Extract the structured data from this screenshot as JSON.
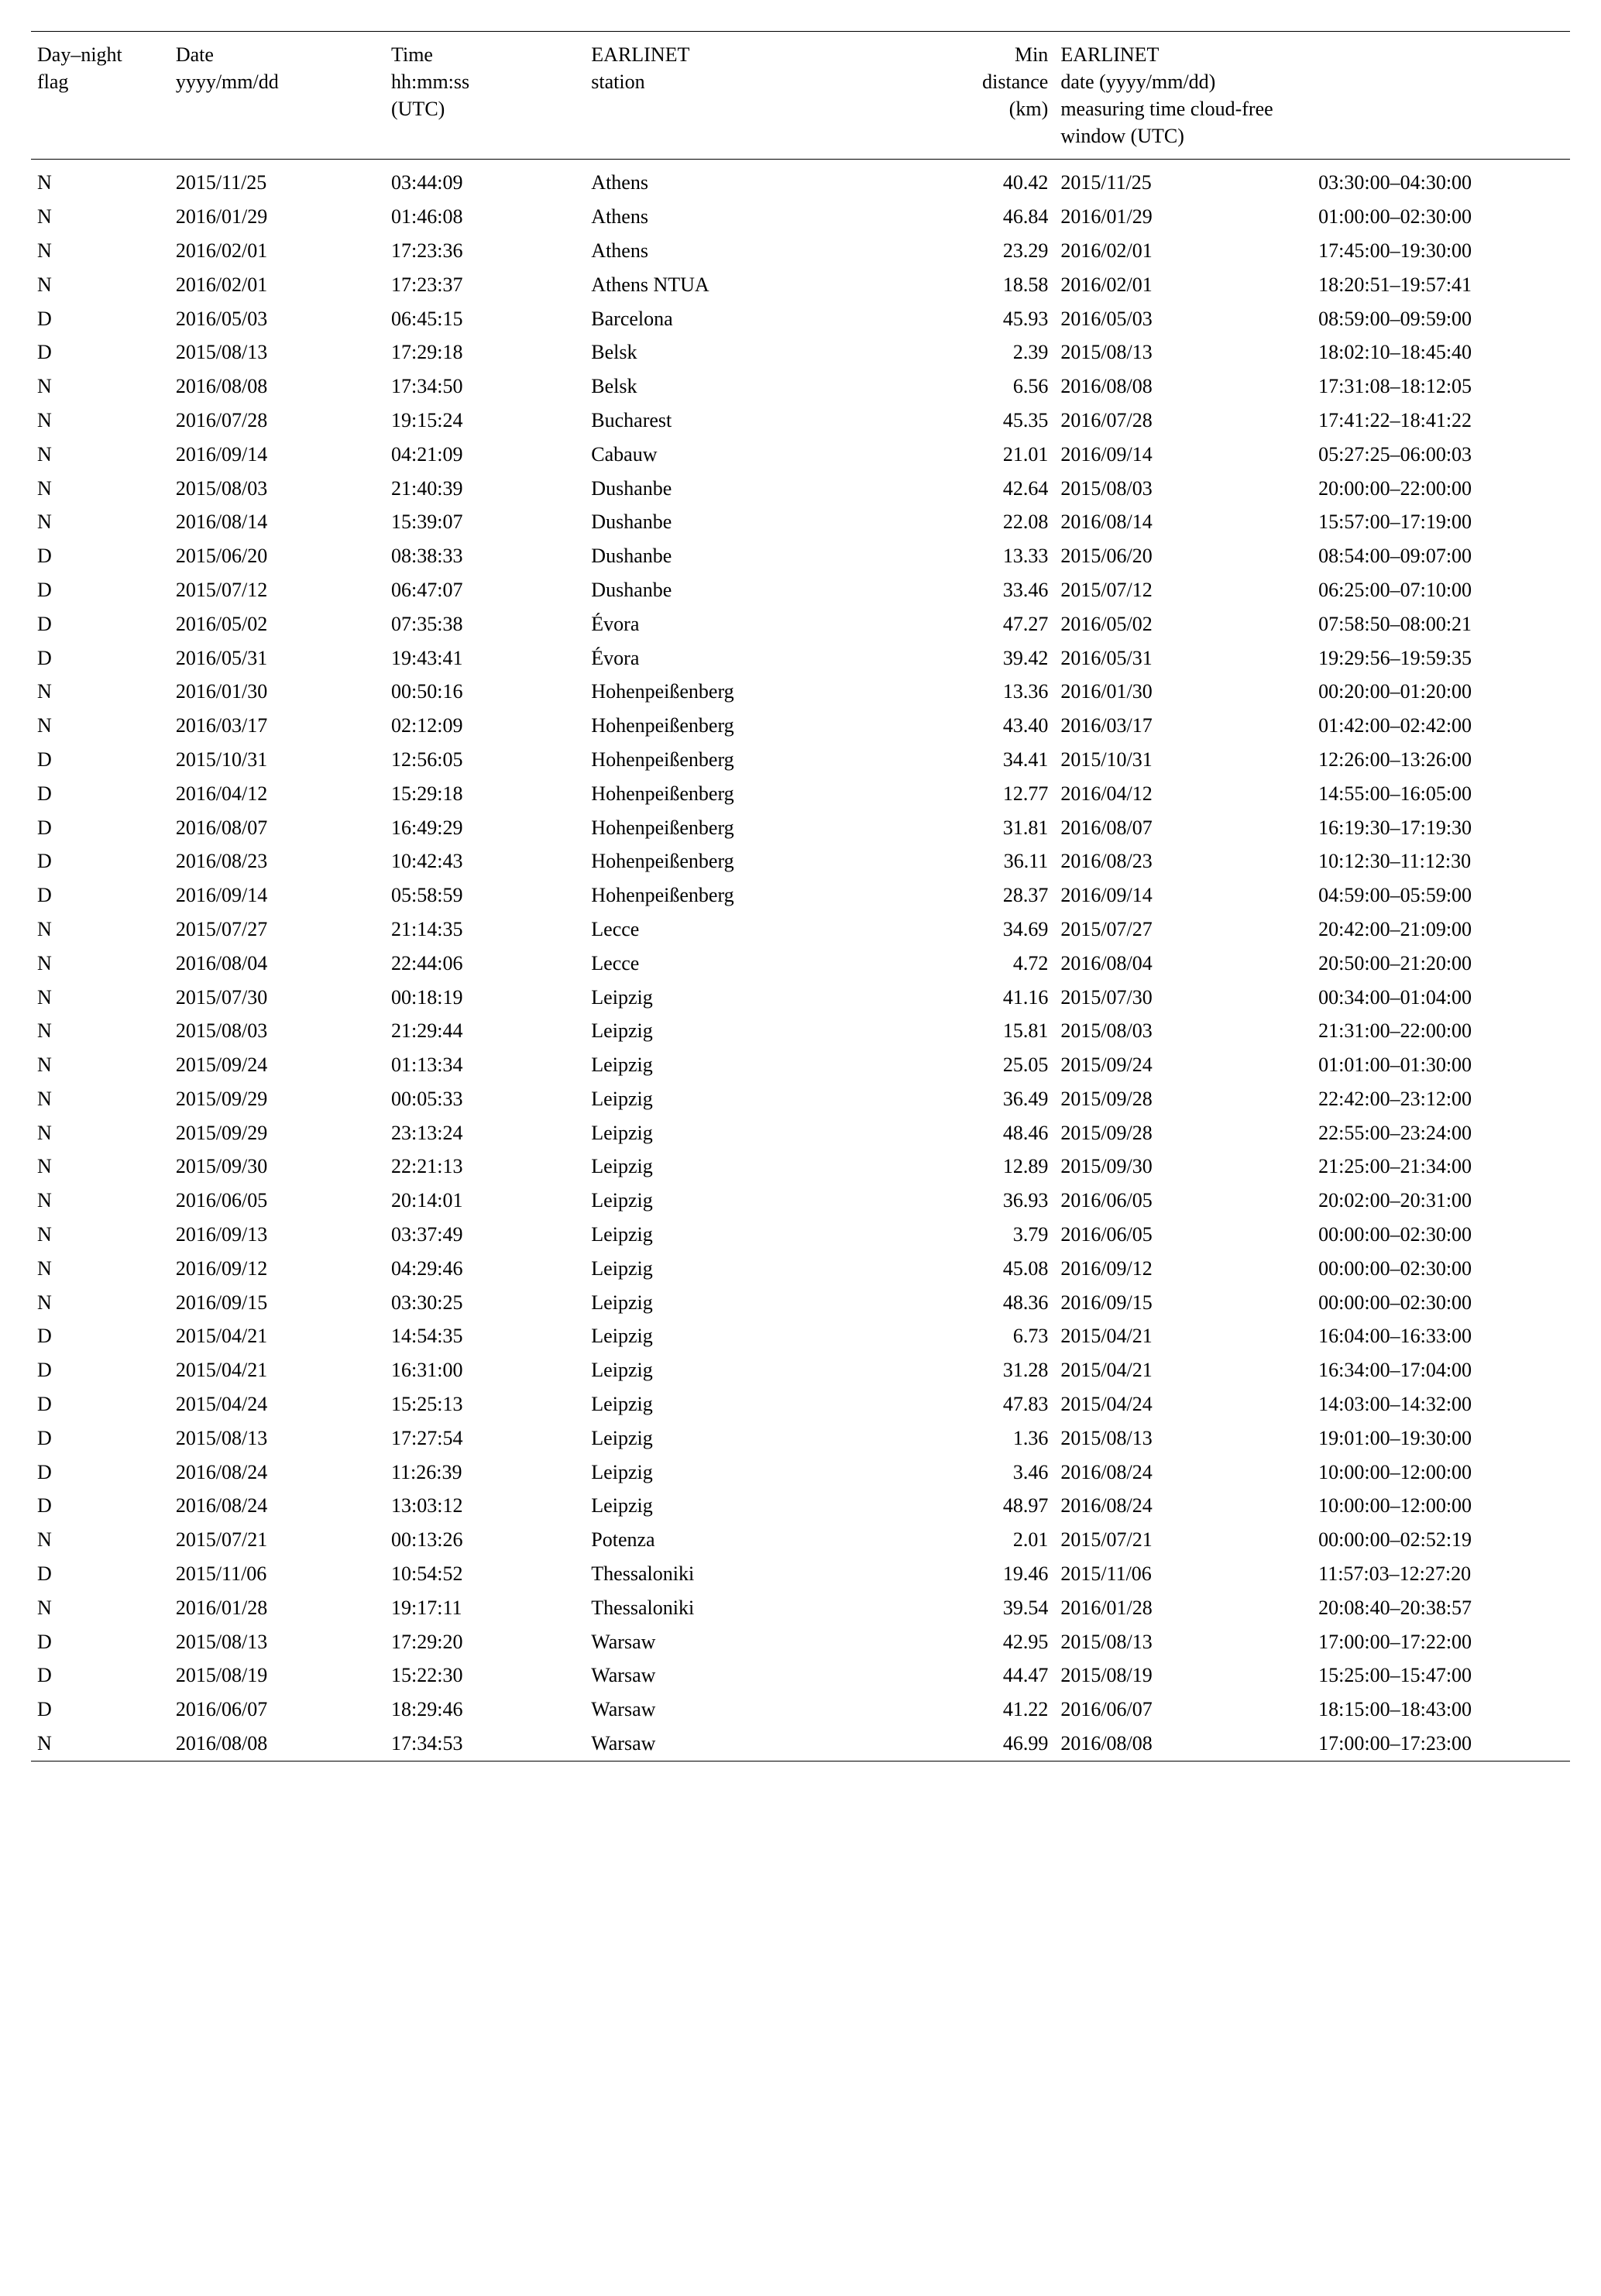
{
  "headers": {
    "flag": {
      "line1": "Day–night",
      "line2": "flag",
      "line3": ""
    },
    "date": {
      "line1": "Date",
      "line2": "yyyy/mm/dd",
      "line3": ""
    },
    "time": {
      "line1": "Time",
      "line2": "hh:mm:ss",
      "line3": "(UTC)"
    },
    "station": {
      "line1": "EARLINET",
      "line2": "station",
      "line3": ""
    },
    "distance": {
      "line1": "Min",
      "line2": "distance",
      "line3": "(km)"
    },
    "earlinet": {
      "line1": "EARLINET",
      "line2": "date (yyyy/mm/dd)",
      "line3": "measuring time cloud-free",
      "line4": "window (UTC)"
    }
  },
  "rows": [
    {
      "flag": "N",
      "date": "2015/11/25",
      "time": "03:44:09",
      "station": "Athens",
      "distance": "40.42",
      "edate": "2015/11/25",
      "ewindow": "03:30:00–04:30:00"
    },
    {
      "flag": "N",
      "date": "2016/01/29",
      "time": "01:46:08",
      "station": "Athens",
      "distance": "46.84",
      "edate": "2016/01/29",
      "ewindow": "01:00:00–02:30:00"
    },
    {
      "flag": "N",
      "date": "2016/02/01",
      "time": "17:23:36",
      "station": "Athens",
      "distance": "23.29",
      "edate": "2016/02/01",
      "ewindow": "17:45:00–19:30:00"
    },
    {
      "flag": "N",
      "date": "2016/02/01",
      "time": "17:23:37",
      "station": "Athens NTUA",
      "distance": "18.58",
      "edate": "2016/02/01",
      "ewindow": "18:20:51–19:57:41"
    },
    {
      "flag": "D",
      "date": "2016/05/03",
      "time": "06:45:15",
      "station": "Barcelona",
      "distance": "45.93",
      "edate": "2016/05/03",
      "ewindow": "08:59:00–09:59:00"
    },
    {
      "flag": "D",
      "date": "2015/08/13",
      "time": "17:29:18",
      "station": "Belsk",
      "distance": "2.39",
      "edate": "2015/08/13",
      "ewindow": "18:02:10–18:45:40"
    },
    {
      "flag": "N",
      "date": "2016/08/08",
      "time": "17:34:50",
      "station": "Belsk",
      "distance": "6.56",
      "edate": "2016/08/08",
      "ewindow": "17:31:08–18:12:05"
    },
    {
      "flag": "N",
      "date": "2016/07/28",
      "time": "19:15:24",
      "station": "Bucharest",
      "distance": "45.35",
      "edate": "2016/07/28",
      "ewindow": "17:41:22–18:41:22"
    },
    {
      "flag": "N",
      "date": "2016/09/14",
      "time": "04:21:09",
      "station": "Cabauw",
      "distance": "21.01",
      "edate": "2016/09/14",
      "ewindow": "05:27:25–06:00:03"
    },
    {
      "flag": "N",
      "date": "2015/08/03",
      "time": "21:40:39",
      "station": "Dushanbe",
      "distance": "42.64",
      "edate": "2015/08/03",
      "ewindow": "20:00:00–22:00:00"
    },
    {
      "flag": "N",
      "date": "2016/08/14",
      "time": "15:39:07",
      "station": "Dushanbe",
      "distance": "22.08",
      "edate": "2016/08/14",
      "ewindow": "15:57:00–17:19:00"
    },
    {
      "flag": "D",
      "date": "2015/06/20",
      "time": "08:38:33",
      "station": "Dushanbe",
      "distance": "13.33",
      "edate": "2015/06/20",
      "ewindow": "08:54:00–09:07:00"
    },
    {
      "flag": "D",
      "date": "2015/07/12",
      "time": "06:47:07",
      "station": "Dushanbe",
      "distance": "33.46",
      "edate": "2015/07/12",
      "ewindow": "06:25:00–07:10:00"
    },
    {
      "flag": "D",
      "date": "2016/05/02",
      "time": "07:35:38",
      "station": "Évora",
      "distance": "47.27",
      "edate": "2016/05/02",
      "ewindow": "07:58:50–08:00:21"
    },
    {
      "flag": "D",
      "date": "2016/05/31",
      "time": "19:43:41",
      "station": "Évora",
      "distance": "39.42",
      "edate": "2016/05/31",
      "ewindow": "19:29:56–19:59:35"
    },
    {
      "flag": "N",
      "date": "2016/01/30",
      "time": "00:50:16",
      "station": "Hohenpeißenberg",
      "distance": "13.36",
      "edate": "2016/01/30",
      "ewindow": "00:20:00–01:20:00"
    },
    {
      "flag": "N",
      "date": "2016/03/17",
      "time": "02:12:09",
      "station": "Hohenpeißenberg",
      "distance": "43.40",
      "edate": "2016/03/17",
      "ewindow": "01:42:00–02:42:00"
    },
    {
      "flag": "D",
      "date": "2015/10/31",
      "time": "12:56:05",
      "station": "Hohenpeißenberg",
      "distance": "34.41",
      "edate": "2015/10/31",
      "ewindow": "12:26:00–13:26:00"
    },
    {
      "flag": "D",
      "date": "2016/04/12",
      "time": "15:29:18",
      "station": "Hohenpeißenberg",
      "distance": "12.77",
      "edate": "2016/04/12",
      "ewindow": "14:55:00–16:05:00"
    },
    {
      "flag": "D",
      "date": "2016/08/07",
      "time": "16:49:29",
      "station": "Hohenpeißenberg",
      "distance": "31.81",
      "edate": "2016/08/07",
      "ewindow": "16:19:30–17:19:30"
    },
    {
      "flag": "D",
      "date": "2016/08/23",
      "time": "10:42:43",
      "station": "Hohenpeißenberg",
      "distance": "36.11",
      "edate": "2016/08/23",
      "ewindow": "10:12:30–11:12:30"
    },
    {
      "flag": "D",
      "date": "2016/09/14",
      "time": "05:58:59",
      "station": "Hohenpeißenberg",
      "distance": "28.37",
      "edate": "2016/09/14",
      "ewindow": "04:59:00–05:59:00"
    },
    {
      "flag": "N",
      "date": "2015/07/27",
      "time": "21:14:35",
      "station": "Lecce",
      "distance": "34.69",
      "edate": "2015/07/27",
      "ewindow": "20:42:00–21:09:00"
    },
    {
      "flag": "N",
      "date": "2016/08/04",
      "time": "22:44:06",
      "station": "Lecce",
      "distance": "4.72",
      "edate": "2016/08/04",
      "ewindow": "20:50:00–21:20:00"
    },
    {
      "flag": "N",
      "date": "2015/07/30",
      "time": "00:18:19",
      "station": "Leipzig",
      "distance": "41.16",
      "edate": "2015/07/30",
      "ewindow": "00:34:00–01:04:00"
    },
    {
      "flag": "N",
      "date": "2015/08/03",
      "time": "21:29:44",
      "station": "Leipzig",
      "distance": "15.81",
      "edate": "2015/08/03",
      "ewindow": "21:31:00–22:00:00"
    },
    {
      "flag": "N",
      "date": "2015/09/24",
      "time": "01:13:34",
      "station": "Leipzig",
      "distance": "25.05",
      "edate": "2015/09/24",
      "ewindow": "01:01:00–01:30:00"
    },
    {
      "flag": "N",
      "date": "2015/09/29",
      "time": "00:05:33",
      "station": "Leipzig",
      "distance": "36.49",
      "edate": "2015/09/28",
      "ewindow": "22:42:00–23:12:00"
    },
    {
      "flag": "N",
      "date": "2015/09/29",
      "time": "23:13:24",
      "station": "Leipzig",
      "distance": "48.46",
      "edate": "2015/09/28",
      "ewindow": "22:55:00–23:24:00"
    },
    {
      "flag": "N",
      "date": "2015/09/30",
      "time": "22:21:13",
      "station": "Leipzig",
      "distance": "12.89",
      "edate": "2015/09/30",
      "ewindow": "21:25:00–21:34:00"
    },
    {
      "flag": "N",
      "date": "2016/06/05",
      "time": "20:14:01",
      "station": "Leipzig",
      "distance": "36.93",
      "edate": "2016/06/05",
      "ewindow": "20:02:00–20:31:00"
    },
    {
      "flag": "N",
      "date": "2016/09/13",
      "time": "03:37:49",
      "station": "Leipzig",
      "distance": "3.79",
      "edate": "2016/06/05",
      "ewindow": "00:00:00–02:30:00"
    },
    {
      "flag": "N",
      "date": "2016/09/12",
      "time": "04:29:46",
      "station": "Leipzig",
      "distance": "45.08",
      "edate": "2016/09/12",
      "ewindow": "00:00:00–02:30:00"
    },
    {
      "flag": "N",
      "date": "2016/09/15",
      "time": "03:30:25",
      "station": "Leipzig",
      "distance": "48.36",
      "edate": "2016/09/15",
      "ewindow": "00:00:00–02:30:00"
    },
    {
      "flag": "D",
      "date": "2015/04/21",
      "time": "14:54:35",
      "station": "Leipzig",
      "distance": "6.73",
      "edate": "2015/04/21",
      "ewindow": "16:04:00–16:33:00"
    },
    {
      "flag": "D",
      "date": "2015/04/21",
      "time": "16:31:00",
      "station": "Leipzig",
      "distance": "31.28",
      "edate": "2015/04/21",
      "ewindow": "16:34:00–17:04:00"
    },
    {
      "flag": "D",
      "date": "2015/04/24",
      "time": "15:25:13",
      "station": "Leipzig",
      "distance": "47.83",
      "edate": "2015/04/24",
      "ewindow": "14:03:00–14:32:00"
    },
    {
      "flag": "D",
      "date": "2015/08/13",
      "time": "17:27:54",
      "station": "Leipzig",
      "distance": "1.36",
      "edate": "2015/08/13",
      "ewindow": "19:01:00–19:30:00"
    },
    {
      "flag": "D",
      "date": "2016/08/24",
      "time": "11:26:39",
      "station": "Leipzig",
      "distance": "3.46",
      "edate": "2016/08/24",
      "ewindow": "10:00:00–12:00:00"
    },
    {
      "flag": "D",
      "date": "2016/08/24",
      "time": "13:03:12",
      "station": "Leipzig",
      "distance": "48.97",
      "edate": "2016/08/24",
      "ewindow": "10:00:00–12:00:00"
    },
    {
      "flag": "N",
      "date": "2015/07/21",
      "time": "00:13:26",
      "station": "Potenza",
      "distance": "2.01",
      "edate": "2015/07/21",
      "ewindow": "00:00:00–02:52:19"
    },
    {
      "flag": "D",
      "date": "2015/11/06",
      "time": "10:54:52",
      "station": "Thessaloniki",
      "distance": "19.46",
      "edate": "2015/11/06",
      "ewindow": "11:57:03–12:27:20"
    },
    {
      "flag": "N",
      "date": "2016/01/28",
      "time": "19:17:11",
      "station": "Thessaloniki",
      "distance": "39.54",
      "edate": "2016/01/28",
      "ewindow": "20:08:40–20:38:57"
    },
    {
      "flag": "D",
      "date": "2015/08/13",
      "time": "17:29:20",
      "station": "Warsaw",
      "distance": "42.95",
      "edate": "2015/08/13",
      "ewindow": "17:00:00–17:22:00"
    },
    {
      "flag": "D",
      "date": "2015/08/19",
      "time": "15:22:30",
      "station": "Warsaw",
      "distance": "44.47",
      "edate": "2015/08/19",
      "ewindow": "15:25:00–15:47:00"
    },
    {
      "flag": "D",
      "date": "2016/06/07",
      "time": "18:29:46",
      "station": "Warsaw",
      "distance": "41.22",
      "edate": "2016/06/07",
      "ewindow": "18:15:00–18:43:00"
    },
    {
      "flag": "N",
      "date": "2016/08/08",
      "time": "17:34:53",
      "station": "Warsaw",
      "distance": "46.99",
      "edate": "2016/08/08",
      "ewindow": "17:00:00–17:23:00"
    }
  ]
}
